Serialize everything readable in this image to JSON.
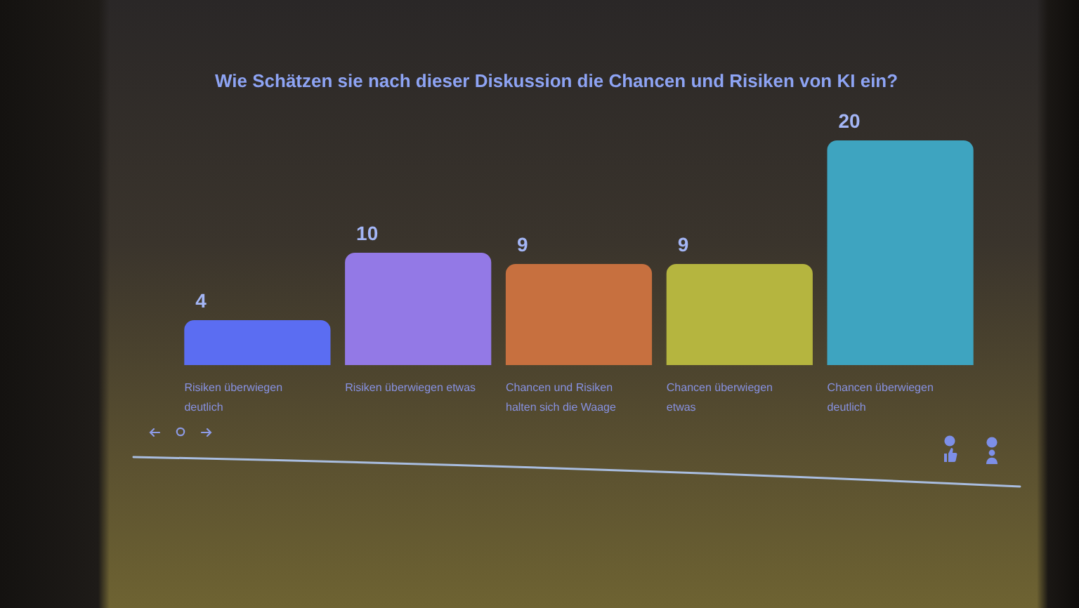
{
  "chart_data": {
    "type": "bar",
    "title": "Wie Schätzen sie nach dieser Diskussion die Chancen und Risiken von KI ein?",
    "categories": [
      "Risiken überwiegen deutlich",
      "Risiken überwiegen etwas",
      "Chancen und Risiken halten sich die Waage",
      "Chancen überwiegen etwas",
      "Chancen überwiegen deutlich"
    ],
    "values": [
      4,
      10,
      9,
      9,
      20
    ],
    "colors": [
      "#5b6df2",
      "#9379e6",
      "#c7703f",
      "#b5b53f",
      "#3ea4c0"
    ],
    "data_labels": true
  }
}
